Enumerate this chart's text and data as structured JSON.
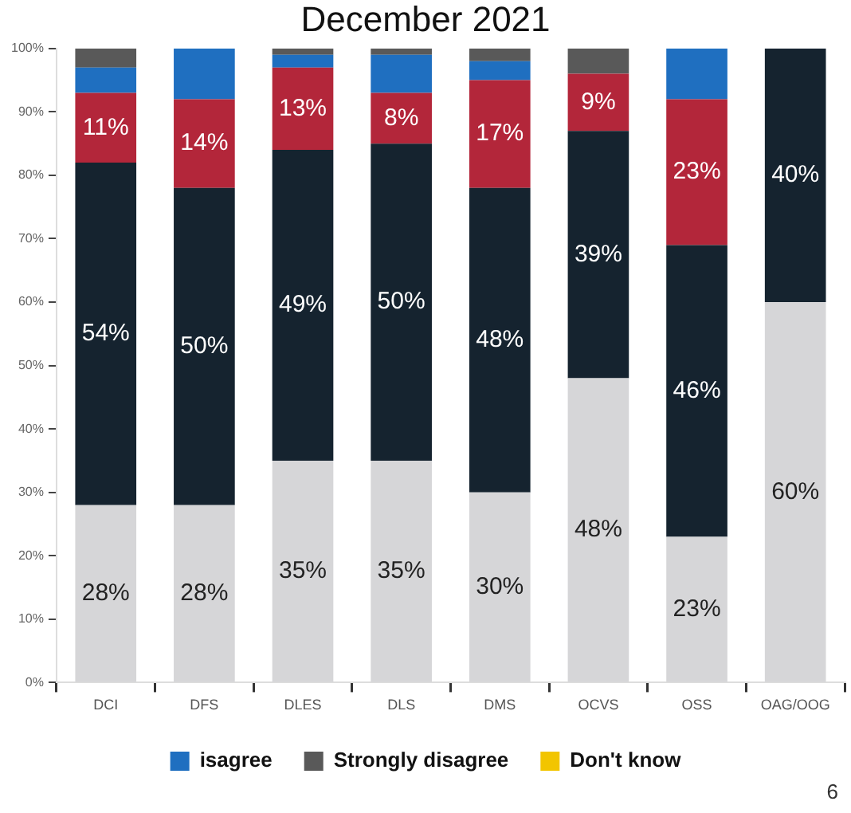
{
  "chart_data": {
    "type": "bar",
    "title": "December 2021",
    "stacked": true,
    "grid": false,
    "legend": "bottom",
    "categories": [
      "DCI",
      "DFS",
      "DLES",
      "DLS",
      "DMS",
      "OCVS",
      "OSS",
      "OAG/OOG"
    ],
    "ylim": [
      0,
      100
    ],
    "yticks": [
      {
        "value": 0,
        "label": "0%"
      },
      {
        "value": 10,
        "label": "10%"
      },
      {
        "value": 20,
        "label": "20%"
      },
      {
        "value": 30,
        "label": "30%"
      },
      {
        "value": 40,
        "label": "40%"
      },
      {
        "value": 50,
        "label": "50%"
      },
      {
        "value": 60,
        "label": "60%"
      },
      {
        "value": 70,
        "label": "70%"
      },
      {
        "value": 80,
        "label": "80%"
      },
      {
        "value": 90,
        "label": "90%"
      },
      {
        "value": 100,
        "label": "100%"
      }
    ],
    "series": [
      {
        "color": "#d6d6d8",
        "values": [
          28,
          28,
          35,
          35,
          30,
          48,
          23,
          60
        ],
        "value_labels": [
          "28%",
          "28%",
          "35%",
          "35%",
          "30%",
          "48%",
          "23%",
          "60%"
        ]
      },
      {
        "color": "#15232f",
        "values": [
          54,
          50,
          49,
          50,
          48,
          39,
          46,
          40
        ],
        "value_labels": [
          "54%",
          "50%",
          "49%",
          "50%",
          "48%",
          "39%",
          "46%",
          "40%"
        ]
      },
      {
        "color": "#b3263a",
        "values": [
          11,
          14,
          13,
          8,
          17,
          9,
          23,
          0
        ],
        "value_labels": [
          "11%",
          "14%",
          "13%",
          "8%",
          "17%",
          "9%",
          "23%",
          null
        ]
      },
      {
        "name": "isagree",
        "color": "#1f6fc0",
        "values": [
          4,
          8,
          2,
          6,
          3,
          0,
          8,
          0
        ]
      },
      {
        "name": "Strongly disagree",
        "color": "#595959",
        "values": [
          3,
          0,
          1,
          1,
          2,
          4,
          0,
          0
        ]
      },
      {
        "name": "Don't know",
        "color": "#f2c500",
        "values": [
          0,
          0,
          0,
          0,
          0,
          0,
          0,
          0
        ]
      }
    ],
    "annotations": [
      "6"
    ]
  }
}
